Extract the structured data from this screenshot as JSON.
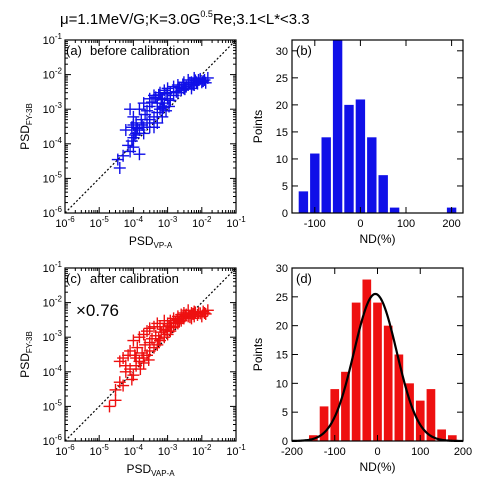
{
  "figure_title": {
    "prefix": "μ=1.1MeV/G;K=3.0G",
    "exponent": "0.5",
    "suffix": "Re;3.1<L*<3.3"
  },
  "colors": {
    "blue": "#1010e8",
    "red": "#ee1010",
    "fit": "#000000"
  },
  "chart_data": [
    {
      "id": "panel-a",
      "type": "scatter",
      "panel_label": "(a)",
      "title": "before calibration",
      "xlabel": "PSD",
      "xlabel_sub": "VP-A",
      "ylabel": "PSD",
      "ylabel_sub": "FY-3B",
      "xscale": "log",
      "yscale": "log",
      "xlim_exp": [
        -6,
        -1
      ],
      "ylim_exp": [
        -6,
        -1
      ],
      "tick_labels": [
        "10^-6",
        "10^-5",
        "10^-4",
        "10^-3",
        "10^-2",
        "10^-1"
      ],
      "marker": "plus",
      "color": "blue",
      "reference_line": "y=x dashed",
      "points": [
        [
          3.5e-05,
          3.5e-05
        ],
        [
          5e-05,
          4.5e-05
        ],
        [
          4e-05,
          2e-05
        ],
        [
          7e-05,
          9e-05
        ],
        [
          8e-05,
          6e-05
        ],
        [
          0.0001,
          0.00015
        ],
        [
          0.00012,
          0.0002
        ],
        [
          9e-05,
          0.00012
        ],
        [
          0.00015,
          0.00025
        ],
        [
          0.0002,
          0.0003
        ],
        [
          0.00025,
          0.0004
        ],
        [
          0.0003,
          0.0005
        ],
        [
          0.0004,
          0.0006
        ],
        [
          0.0005,
          0.0008
        ],
        [
          0.0006,
          0.001
        ],
        [
          0.0007,
          0.0012
        ],
        [
          0.0008,
          0.0015
        ],
        [
          0.001,
          0.002
        ],
        [
          0.0012,
          0.0018
        ],
        [
          0.0015,
          0.0025
        ],
        [
          0.002,
          0.003
        ],
        [
          0.0025,
          0.0035
        ],
        [
          0.003,
          0.004
        ],
        [
          0.004,
          0.005
        ],
        [
          0.005,
          0.006
        ],
        [
          0.006,
          0.005
        ],
        [
          0.008,
          0.007
        ],
        [
          0.01,
          0.006
        ],
        [
          0.012,
          0.007
        ],
        [
          0.015,
          0.008
        ],
        [
          0.0001,
          0.0006
        ],
        [
          0.00015,
          0.001
        ],
        [
          0.0002,
          0.0015
        ],
        [
          8e-05,
          0.001
        ],
        [
          0.0003,
          0.002
        ],
        [
          0.0004,
          0.0025
        ],
        [
          0.0005,
          0.0015
        ],
        [
          0.0006,
          0.003
        ],
        [
          0.0008,
          0.0035
        ],
        [
          0.001,
          0.004
        ],
        [
          0.0012,
          0.003
        ],
        [
          0.0015,
          0.0045
        ],
        [
          0.002,
          0.005
        ],
        [
          0.0025,
          0.004
        ],
        [
          0.003,
          0.006
        ],
        [
          0.0035,
          0.0045
        ],
        [
          0.004,
          0.007
        ],
        [
          0.005,
          0.004
        ],
        [
          0.006,
          0.008
        ],
        [
          0.007,
          0.006
        ],
        [
          0.0001,
          8e-05
        ],
        [
          0.00012,
          0.0004
        ],
        [
          0.00018,
          0.00035
        ],
        [
          0.00022,
          0.0007
        ],
        [
          0.0003,
          0.0003
        ],
        [
          0.0004,
          0.0003
        ],
        [
          0.0005,
          0.0004
        ],
        [
          0.0007,
          0.0006
        ],
        [
          0.0009,
          0.0009
        ],
        [
          0.0011,
          0.0012
        ],
        [
          6e-05,
          0.00025
        ],
        [
          9e-05,
          0.0003
        ],
        [
          0.0002,
          0.0002
        ],
        [
          0.00015,
          5e-05
        ],
        [
          0.0003,
          0.0012
        ],
        [
          0.0007,
          0.002
        ],
        [
          0.0009,
          0.0028
        ],
        [
          0.0018,
          0.0032
        ],
        [
          0.0022,
          0.0042
        ],
        [
          0.0028,
          0.0052
        ],
        [
          0.0032,
          0.0038
        ],
        [
          0.0045,
          0.0058
        ],
        [
          0.0055,
          0.0052
        ],
        [
          0.0065,
          0.0068
        ],
        [
          0.0075,
          0.0055
        ],
        [
          0.009,
          0.0075
        ],
        [
          0.011,
          0.0065
        ],
        [
          0.013,
          0.0058
        ],
        [
          0.00025,
          0.0009
        ],
        [
          0.00035,
          0.0016
        ],
        [
          0.00045,
          0.0022
        ],
        [
          0.00055,
          0.0026
        ],
        [
          0.00065,
          0.0019
        ],
        [
          0.00075,
          0.0011
        ],
        [
          0.00013,
          0.00028
        ],
        [
          0.00017,
          0.0005
        ],
        [
          0.0001,
          0.00035
        ],
        [
          0.00011,
          0.00018
        ]
      ]
    },
    {
      "id": "panel-b",
      "type": "bar",
      "panel_label": "(b)",
      "xlabel": "ND(%)",
      "ylabel": "Points",
      "xlim": [
        -150,
        225
      ],
      "ylim": [
        0,
        32
      ],
      "xticks": [
        -100,
        0,
        100,
        200
      ],
      "yticks": [
        0,
        5,
        10,
        15,
        20,
        25,
        30
      ],
      "bin_width": 25,
      "bin_centers": [
        -125,
        -100,
        -75,
        -50,
        -25,
        0,
        25,
        50,
        75,
        100,
        125,
        150,
        175,
        200
      ],
      "values": [
        4,
        11,
        14,
        32,
        20,
        21,
        14,
        7,
        1,
        0,
        0,
        0,
        0,
        1
      ],
      "color": "blue"
    },
    {
      "id": "panel-c",
      "type": "scatter",
      "panel_label": "(c)",
      "title": "after calibration",
      "annotation": "×0.76",
      "xlabel": "PSD",
      "xlabel_sub": "VAP-A",
      "ylabel": "PSD",
      "ylabel_sub": "FY-3B",
      "xscale": "log",
      "yscale": "log",
      "xlim_exp": [
        -6,
        -1
      ],
      "ylim_exp": [
        -6,
        -1
      ],
      "tick_labels": [
        "10^-6",
        "10^-5",
        "10^-4",
        "10^-3",
        "10^-2",
        "10^-1"
      ],
      "marker": "plus",
      "color": "red",
      "reference_line": "y=x dashed",
      "points": [
        [
          2e-05,
          1e-05
        ],
        [
          3e-05,
          1.5e-05
        ],
        [
          3e-05,
          3e-05
        ],
        [
          4e-05,
          5e-05
        ],
        [
          5e-05,
          4e-05
        ],
        [
          6e-05,
          0.0001
        ],
        [
          8e-05,
          0.00012
        ],
        [
          0.0001,
          8e-05
        ],
        [
          0.00012,
          0.00015
        ],
        [
          0.00015,
          0.0002
        ],
        [
          0.0002,
          0.00025
        ],
        [
          0.00025,
          0.0003
        ],
        [
          0.0003,
          0.0004
        ],
        [
          0.0004,
          0.0005
        ],
        [
          0.0005,
          0.0006
        ],
        [
          0.0006,
          0.0008
        ],
        [
          0.0008,
          0.001
        ],
        [
          0.001,
          0.0012
        ],
        [
          0.0012,
          0.0015
        ],
        [
          0.0015,
          0.002
        ],
        [
          0.002,
          0.0025
        ],
        [
          0.0025,
          0.003
        ],
        [
          0.003,
          0.0035
        ],
        [
          0.004,
          0.004
        ],
        [
          0.005,
          0.005
        ],
        [
          0.006,
          0.004
        ],
        [
          0.008,
          0.005
        ],
        [
          0.01,
          0.004
        ],
        [
          0.012,
          0.005
        ],
        [
          0.015,
          0.006
        ],
        [
          8e-05,
          0.0004
        ],
        [
          0.0001,
          0.0008
        ],
        [
          0.00015,
          0.001
        ],
        [
          0.0002,
          0.0012
        ],
        [
          0.00025,
          0.0015
        ],
        [
          0.0003,
          0.0018
        ],
        [
          0.0004,
          0.002
        ],
        [
          0.0005,
          0.0025
        ],
        [
          0.0006,
          0.002
        ],
        [
          0.0008,
          0.003
        ],
        [
          0.001,
          0.0025
        ],
        [
          0.0012,
          0.003
        ],
        [
          0.0015,
          0.0035
        ],
        [
          0.002,
          0.004
        ],
        [
          0.0025,
          0.0045
        ],
        [
          0.003,
          0.005
        ],
        [
          0.0035,
          0.0045
        ],
        [
          0.004,
          0.006
        ],
        [
          0.005,
          0.0035
        ],
        [
          0.006,
          0.0055
        ],
        [
          5e-05,
          0.00025
        ],
        [
          7e-05,
          0.0003
        ],
        [
          9e-05,
          6e-05
        ],
        [
          0.00011,
          0.0003
        ],
        [
          0.00013,
          0.0005
        ],
        [
          0.00018,
          0.00035
        ],
        [
          0.00022,
          0.0006
        ],
        [
          0.0003,
          0.0007
        ],
        [
          0.00035,
          0.0009
        ],
        [
          0.00045,
          0.0011
        ],
        [
          0.00055,
          0.0009
        ],
        [
          0.00065,
          0.0014
        ],
        [
          0.00075,
          0.0017
        ],
        [
          0.0009,
          0.0016
        ],
        [
          0.0011,
          0.0021
        ],
        [
          0.0013,
          0.0019
        ],
        [
          0.0017,
          0.0026
        ],
        [
          0.0019,
          0.0032
        ],
        [
          0.0022,
          0.0028
        ],
        [
          0.0028,
          0.0038
        ],
        [
          0.0033,
          0.0042
        ],
        [
          0.0045,
          0.0038
        ],
        [
          0.0055,
          0.0047
        ],
        [
          0.0065,
          0.0052
        ],
        [
          0.0075,
          0.0044
        ],
        [
          0.009,
          0.0049
        ],
        [
          0.011,
          0.0055
        ],
        [
          0.013,
          0.0047
        ],
        [
          4e-05,
          0.0002
        ],
        [
          6e-05,
          0.00015
        ],
        [
          0.00012,
          0.00025
        ],
        [
          0.00016,
          0.00012
        ],
        [
          0.0002,
          0.00018
        ],
        [
          0.00028,
          0.00022
        ]
      ]
    },
    {
      "id": "panel-d",
      "type": "bar",
      "panel_label": "(d)",
      "xlabel": "ND(%)",
      "ylabel": "Points",
      "xlim": [
        -200,
        200
      ],
      "ylim": [
        0,
        30
      ],
      "xticks": [
        -200,
        -100,
        0,
        100,
        200
      ],
      "yticks": [
        0,
        5,
        10,
        15,
        20,
        25,
        30
      ],
      "bin_width": 25,
      "bin_centers": [
        -150,
        -125,
        -100,
        -75,
        -50,
        -25,
        0,
        25,
        50,
        75,
        100,
        125,
        150,
        175
      ],
      "values": [
        1,
        6,
        9,
        12,
        24,
        28,
        24,
        20,
        15,
        10,
        7,
        9,
        2,
        1
      ],
      "color": "red",
      "fit": {
        "type": "gaussian",
        "amplitude": 25.5,
        "mean": -5,
        "sigma": 50
      }
    }
  ]
}
